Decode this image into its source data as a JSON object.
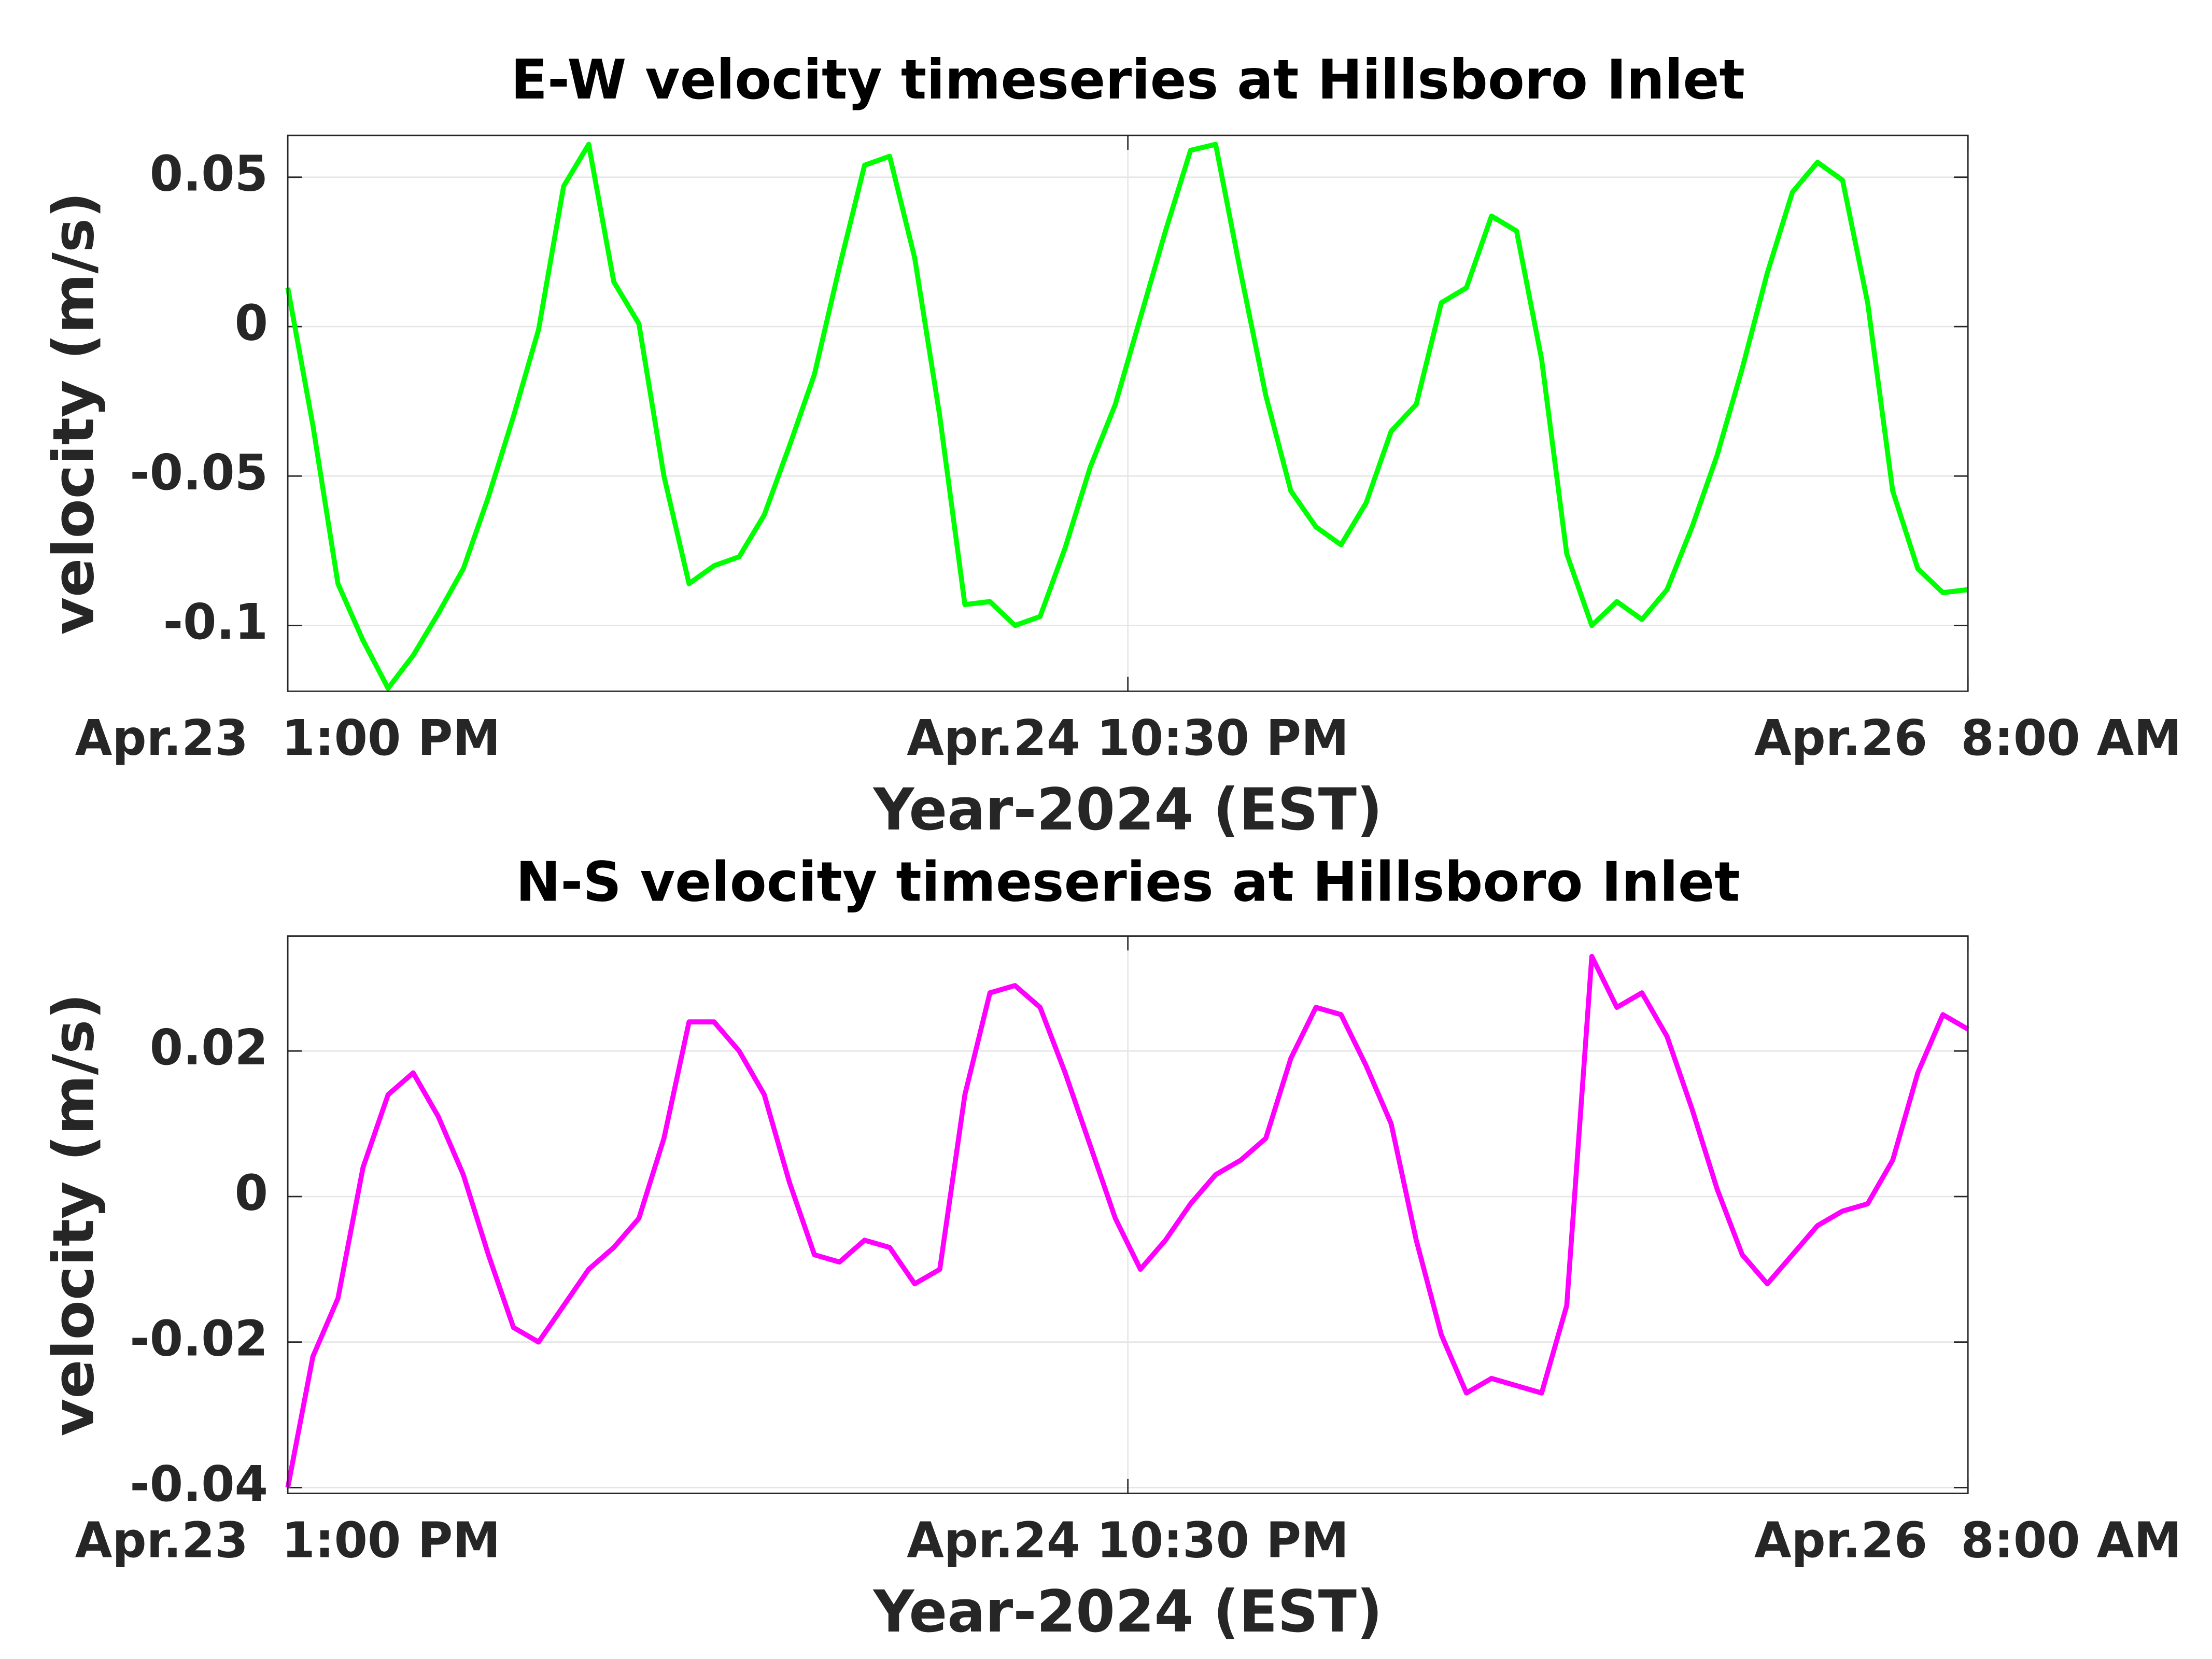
{
  "chart_data": [
    {
      "type": "line",
      "title": "E-W velocity timeseries at Hillsboro Inlet",
      "xlabel": "Year-2024 (EST)",
      "ylabel": "velocity (m/s)",
      "color": "#00ff00",
      "grid": true,
      "xlim": [
        "2024-04-23T13:00",
        "2024-04-26T08:00"
      ],
      "xticks": [
        {
          "value": "2024-04-23T13:00",
          "label": "Apr.23  1:00 PM"
        },
        {
          "value": "2024-04-24T22:30",
          "label": "Apr.24 10:30 PM"
        },
        {
          "value": "2024-04-26T08:00",
          "label": "Apr.26  8:00 AM"
        }
      ],
      "ylim": [
        -0.122,
        0.064
      ],
      "yticks": [
        -0.1,
        -0.05,
        0,
        0.05
      ],
      "x": [
        "2024-04-23T13:00",
        "2024-04-23T14:00",
        "2024-04-23T15:00",
        "2024-04-23T16:00",
        "2024-04-23T17:00",
        "2024-04-23T18:00",
        "2024-04-23T19:00",
        "2024-04-23T20:00",
        "2024-04-23T21:00",
        "2024-04-23T22:00",
        "2024-04-23T23:00",
        "2024-04-24T00:00",
        "2024-04-24T01:00",
        "2024-04-24T02:00",
        "2024-04-24T03:00",
        "2024-04-24T04:00",
        "2024-04-24T05:00",
        "2024-04-24T06:00",
        "2024-04-24T07:00",
        "2024-04-24T08:00",
        "2024-04-24T09:00",
        "2024-04-24T10:00",
        "2024-04-24T11:00",
        "2024-04-24T12:00",
        "2024-04-24T13:00",
        "2024-04-24T14:00",
        "2024-04-24T15:00",
        "2024-04-24T16:00",
        "2024-04-24T17:00",
        "2024-04-24T18:00",
        "2024-04-24T19:00",
        "2024-04-24T20:00",
        "2024-04-24T21:00",
        "2024-04-24T22:00",
        "2024-04-24T23:00",
        "2024-04-25T00:00",
        "2024-04-25T01:00",
        "2024-04-25T02:00",
        "2024-04-25T03:00",
        "2024-04-25T04:00",
        "2024-04-25T05:00",
        "2024-04-25T06:00",
        "2024-04-25T07:00",
        "2024-04-25T08:00",
        "2024-04-25T09:00",
        "2024-04-25T10:00",
        "2024-04-25T11:00",
        "2024-04-25T12:00",
        "2024-04-25T13:00",
        "2024-04-25T14:00",
        "2024-04-25T15:00",
        "2024-04-25T16:00",
        "2024-04-25T17:00",
        "2024-04-25T18:00",
        "2024-04-25T19:00",
        "2024-04-25T20:00",
        "2024-04-25T21:00",
        "2024-04-25T22:00",
        "2024-04-25T23:00",
        "2024-04-26T00:00",
        "2024-04-26T01:00",
        "2024-04-26T02:00",
        "2024-04-26T03:00",
        "2024-04-26T04:00",
        "2024-04-26T05:00",
        "2024-04-26T06:00",
        "2024-04-26T07:00",
        "2024-04-26T08:00"
      ],
      "values": [
        0.013,
        -0.033,
        -0.086,
        -0.105,
        -0.121,
        -0.11,
        -0.096,
        -0.081,
        -0.057,
        -0.03,
        -0.001,
        0.047,
        0.061,
        0.015,
        0.001,
        -0.05,
        -0.086,
        -0.08,
        -0.077,
        -0.063,
        -0.04,
        -0.016,
        0.02,
        0.054,
        0.057,
        0.023,
        -0.03,
        -0.093,
        -0.092,
        -0.1,
        -0.097,
        -0.074,
        -0.047,
        -0.026,
        0.003,
        0.032,
        0.059,
        0.061,
        0.018,
        -0.023,
        -0.055,
        -0.067,
        -0.073,
        -0.059,
        -0.035,
        -0.026,
        0.008,
        0.013,
        0.037,
        0.032,
        -0.011,
        -0.076,
        -0.1,
        -0.092,
        -0.098,
        -0.088,
        -0.067,
        -0.043,
        -0.014,
        0.018,
        0.045,
        0.055,
        0.049,
        0.008,
        -0.055,
        -0.081,
        -0.089,
        -0.088
      ]
    },
    {
      "type": "line",
      "title": "N-S velocity timeseries at Hillsboro Inlet",
      "xlabel": "Year-2024 (EST)",
      "ylabel": "velocity (m/s)",
      "color": "#ff00ff",
      "grid": true,
      "xlim": [
        "2024-04-23T13:00",
        "2024-04-26T08:00"
      ],
      "xticks": [
        {
          "value": "2024-04-23T13:00",
          "label": "Apr.23  1:00 PM"
        },
        {
          "value": "2024-04-24T22:30",
          "label": "Apr.24 10:30 PM"
        },
        {
          "value": "2024-04-26T08:00",
          "label": "Apr.26  8:00 AM"
        }
      ],
      "ylim": [
        -0.0408,
        0.0358
      ],
      "yticks": [
        -0.04,
        -0.02,
        0,
        0.02
      ],
      "x": [
        "2024-04-23T13:00",
        "2024-04-23T14:00",
        "2024-04-23T15:00",
        "2024-04-23T16:00",
        "2024-04-23T17:00",
        "2024-04-23T18:00",
        "2024-04-23T19:00",
        "2024-04-23T20:00",
        "2024-04-23T21:00",
        "2024-04-23T22:00",
        "2024-04-23T23:00",
        "2024-04-24T00:00",
        "2024-04-24T01:00",
        "2024-04-24T02:00",
        "2024-04-24T03:00",
        "2024-04-24T04:00",
        "2024-04-24T05:00",
        "2024-04-24T06:00",
        "2024-04-24T07:00",
        "2024-04-24T08:00",
        "2024-04-24T09:00",
        "2024-04-24T10:00",
        "2024-04-24T11:00",
        "2024-04-24T12:00",
        "2024-04-24T13:00",
        "2024-04-24T14:00",
        "2024-04-24T15:00",
        "2024-04-24T16:00",
        "2024-04-24T17:00",
        "2024-04-24T18:00",
        "2024-04-24T19:00",
        "2024-04-24T20:00",
        "2024-04-24T21:00",
        "2024-04-24T22:00",
        "2024-04-24T23:00",
        "2024-04-25T00:00",
        "2024-04-25T01:00",
        "2024-04-25T02:00",
        "2024-04-25T03:00",
        "2024-04-25T04:00",
        "2024-04-25T05:00",
        "2024-04-25T06:00",
        "2024-04-25T07:00",
        "2024-04-25T08:00",
        "2024-04-25T09:00",
        "2024-04-25T10:00",
        "2024-04-25T11:00",
        "2024-04-25T12:00",
        "2024-04-25T13:00",
        "2024-04-25T14:00",
        "2024-04-25T15:00",
        "2024-04-25T16:00",
        "2024-04-25T17:00",
        "2024-04-25T18:00",
        "2024-04-25T19:00",
        "2024-04-25T20:00",
        "2024-04-25T21:00",
        "2024-04-25T22:00",
        "2024-04-25T23:00",
        "2024-04-26T00:00",
        "2024-04-26T01:00",
        "2024-04-26T02:00",
        "2024-04-26T03:00",
        "2024-04-26T04:00",
        "2024-04-26T05:00",
        "2024-04-26T06:00",
        "2024-04-26T07:00",
        "2024-04-26T08:00"
      ],
      "values": [
        -0.04,
        -0.022,
        -0.014,
        0.004,
        0.014,
        0.017,
        0.011,
        0.003,
        -0.008,
        -0.018,
        -0.02,
        -0.015,
        -0.01,
        -0.007,
        -0.003,
        0.008,
        0.024,
        0.024,
        0.02,
        0.014,
        0.002,
        -0.008,
        -0.009,
        -0.006,
        -0.007,
        -0.012,
        -0.01,
        0.014,
        0.028,
        0.029,
        0.026,
        0.017,
        0.007,
        -0.003,
        -0.01,
        -0.006,
        -0.001,
        0.003,
        0.005,
        0.008,
        0.019,
        0.026,
        0.025,
        0.018,
        0.01,
        -0.006,
        -0.019,
        -0.027,
        -0.025,
        -0.026,
        -0.027,
        -0.015,
        0.033,
        0.026,
        0.028,
        0.022,
        0.012,
        0.001,
        -0.008,
        -0.012,
        -0.008,
        -0.004,
        -0.002,
        -0.001,
        0.005,
        0.017,
        0.025,
        0.023
      ]
    }
  ]
}
